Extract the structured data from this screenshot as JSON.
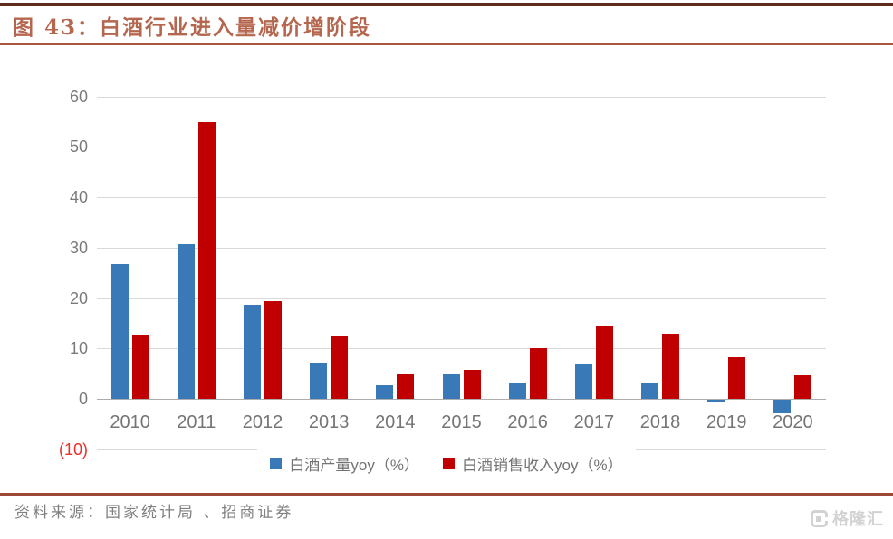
{
  "header": {
    "title": "图 43：白酒行业进入量减价增阶段"
  },
  "chart_data": {
    "type": "bar",
    "title": "白酒行业进入量减价增阶段",
    "categories": [
      "2010",
      "2011",
      "2012",
      "2013",
      "2014",
      "2015",
      "2016",
      "2017",
      "2018",
      "2019",
      "2020"
    ],
    "series": [
      {
        "name": "白酒产量yoy（%）",
        "color": "#3a79b8",
        "values": [
          26.8,
          30.7,
          18.6,
          7.1,
          2.7,
          5.1,
          3.2,
          6.9,
          3.2,
          -0.6,
          -2.7
        ]
      },
      {
        "name": "白酒销售收入yoy（%）",
        "color": "#c00000",
        "values": [
          12.8,
          54.8,
          19.3,
          12.4,
          4.8,
          5.8,
          10.1,
          14.4,
          12.9,
          8.2,
          4.6
        ]
      }
    ],
    "xlabel": "",
    "ylabel": "",
    "ylim": [
      -10,
      60
    ],
    "grid": true,
    "legend_position": "bottom",
    "yticks": [
      {
        "label": "60",
        "value": 60
      },
      {
        "label": "50",
        "value": 50
      },
      {
        "label": "40",
        "value": 40
      },
      {
        "label": "30",
        "value": 30
      },
      {
        "label": "20",
        "value": 20
      },
      {
        "label": "10",
        "value": 10
      },
      {
        "label": "0",
        "value": 0
      },
      {
        "label": "(10)",
        "value": -10,
        "color": "#e8312a"
      }
    ]
  },
  "footer": {
    "source": "资料来源：国家统计局 、招商证券",
    "logo_text": "格隆汇"
  },
  "colors": {
    "production_bar": "#3a79b8",
    "revenue_bar": "#c00000",
    "negative_tick": "#e8312a",
    "title_text": "#b5664e",
    "top_rule": "#5f2d1d",
    "title_rule": "#a85742",
    "footer_rule": "#9e4936",
    "gridline": "#d9d9d9",
    "axis_text": "#7a7a7a"
  }
}
